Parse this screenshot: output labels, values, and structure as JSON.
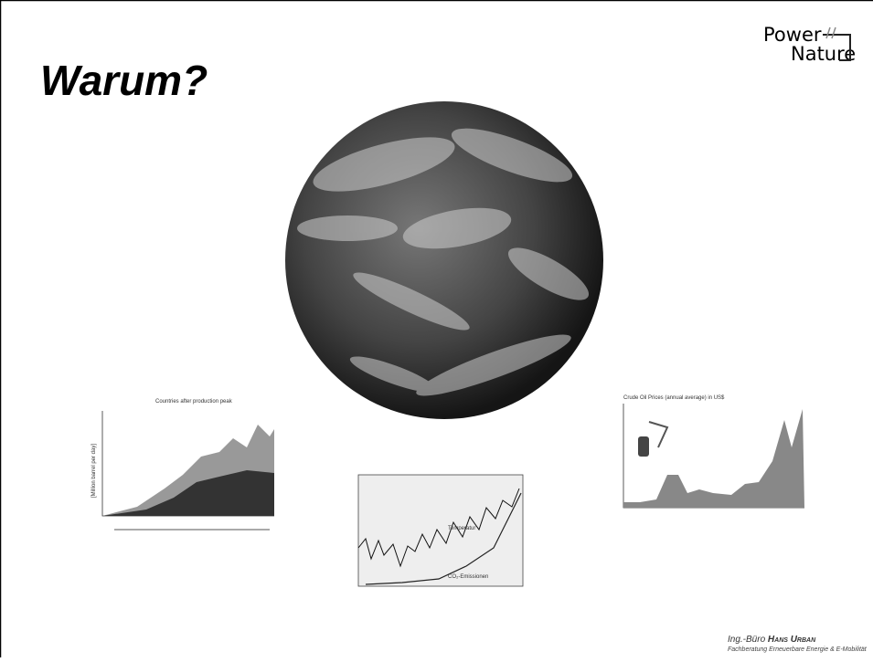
{
  "header": {
    "title": "Warum?",
    "logo": {
      "line1": "Power",
      "line2": "Nature"
    }
  },
  "images": {
    "oil_production": {
      "title": "Countries after production peak",
      "y_label": "[Million barrel per day]"
    },
    "co2_temperature": {
      "label1": "Temperatur",
      "label2": "CO₂-Emissionen"
    },
    "oil_price": {
      "title": "Crude Oil Prices (annual average) in US$"
    }
  },
  "footer": {
    "prefix": "Ing.-Büro",
    "name": "Hans Urban",
    "line2": "Fachberatung Erneuerbare Energie & E-Mobilität"
  }
}
